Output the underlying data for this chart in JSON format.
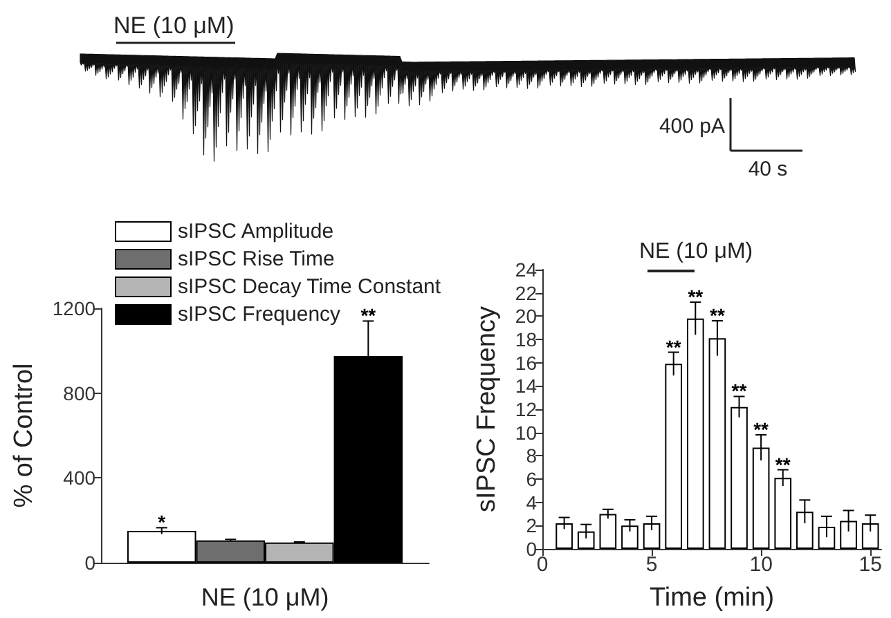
{
  "chart_data": [
    {
      "type": "other",
      "annotations": [
        "NE (10 μM)",
        "400 pA",
        "40 s"
      ]
    },
    {
      "type": "bar",
      "categories": [
        null
      ],
      "xlabel": "NE (10 μM)",
      "ylabel": "% of Control",
      "ylim": [
        0,
        1200
      ],
      "yticks": [
        0,
        400,
        800,
        1200
      ],
      "legend": "top left",
      "grid": false,
      "series": [
        {
          "name": "sIPSC Amplitude",
          "color": "#ffffff",
          "values": [
            150
          ],
          "errors": [
            15
          ],
          "value_labels": [
            "*"
          ]
        },
        {
          "name": "sIPSC Rise Time",
          "color": "#6e6e6e",
          "values": [
            105
          ],
          "errors": [
            5
          ],
          "value_labels": [
            null
          ]
        },
        {
          "name": "sIPSC Decay Time Constant",
          "color": "#b4b4b4",
          "values": [
            95
          ],
          "errors": [
            3
          ],
          "value_labels": [
            null
          ]
        },
        {
          "name": "sIPSC Frequency",
          "color": "#000000",
          "values": [
            975
          ],
          "errors": [
            165
          ],
          "value_labels": [
            "**"
          ]
        }
      ]
    },
    {
      "type": "bar",
      "x": [
        1,
        2,
        3,
        4,
        5,
        6,
        7,
        8,
        9,
        10,
        11,
        12,
        13,
        14,
        15
      ],
      "xlabel": "Time (min)",
      "ylabel": "sIPSC Frequency",
      "xlim": [
        0,
        15.5
      ],
      "xticks": [
        0,
        5,
        10,
        15
      ],
      "ylim": [
        0,
        24
      ],
      "yticks": [
        0,
        2,
        4,
        6,
        8,
        10,
        12,
        14,
        16,
        18,
        20,
        22,
        24
      ],
      "grid": false,
      "color": "#ffffff",
      "annotations": [
        "NE (10 μM)"
      ],
      "values": [
        2.2,
        1.5,
        3.0,
        2.0,
        2.2,
        15.9,
        19.8,
        18.1,
        12.2,
        8.7,
        6.1,
        3.2,
        1.9,
        2.4,
        2.2
      ],
      "errors": [
        0.5,
        0.6,
        0.4,
        0.5,
        0.6,
        1.0,
        1.4,
        1.5,
        0.9,
        1.1,
        0.7,
        1.0,
        0.9,
        0.9,
        0.7
      ],
      "value_labels": [
        null,
        null,
        null,
        null,
        null,
        "**",
        "**",
        "**",
        "**",
        "**",
        "**",
        null,
        null,
        null,
        null
      ]
    }
  ]
}
